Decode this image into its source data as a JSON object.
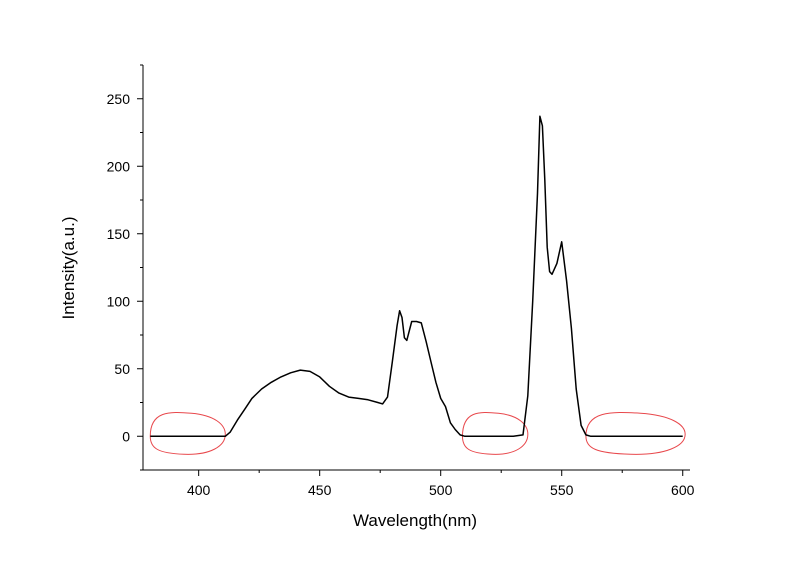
{
  "chart_data": {
    "type": "line",
    "title": "",
    "xlabel": "Wavelength(nm)",
    "ylabel": "Intensity(a.u.)",
    "xlim": [
      377,
      603
    ],
    "ylim": [
      -25,
      275
    ],
    "xticks": [
      400,
      450,
      500,
      550,
      600
    ],
    "yticks": [
      0,
      50,
      100,
      150,
      200,
      250
    ],
    "grid": false,
    "legend": "none",
    "series": [
      {
        "color": "#000000",
        "x": [
          380,
          390,
          400,
          408,
          411,
          413,
          416,
          419,
          422,
          426,
          430,
          434,
          438,
          442,
          446,
          450,
          454,
          458,
          462,
          466,
          470,
          474,
          476,
          478,
          480,
          482,
          483,
          484,
          485,
          486,
          488,
          490,
          492,
          494,
          496,
          498,
          500,
          502,
          504,
          506,
          508,
          510,
          520,
          530,
          534,
          536,
          538,
          540,
          541,
          542,
          543,
          544,
          545,
          546,
          548,
          550,
          552,
          554,
          556,
          558,
          560,
          562,
          570,
          580,
          590,
          600
        ],
        "y": [
          0,
          0,
          0,
          0,
          0,
          3,
          12,
          20,
          28,
          35,
          40,
          44,
          47,
          49,
          48,
          44,
          37,
          32,
          29,
          28,
          27,
          25,
          24,
          29,
          55,
          82,
          93,
          88,
          73,
          71,
          85,
          85,
          84,
          70,
          55,
          40,
          28,
          22,
          10,
          5,
          1,
          0,
          0,
          0,
          1,
          30,
          100,
          180,
          237,
          230,
          190,
          140,
          122,
          120,
          128,
          144,
          115,
          80,
          35,
          8,
          1,
          0,
          0,
          0,
          0,
          0
        ]
      }
    ],
    "annotations": [
      {
        "type": "hand-drawn-loop",
        "color": "#e8484c",
        "x": [
          380,
          411
        ]
      },
      {
        "type": "hand-drawn-loop",
        "color": "#e8484c",
        "x": [
          509,
          536
        ]
      },
      {
        "type": "hand-drawn-loop",
        "color": "#e8484c",
        "x": [
          560,
          601
        ]
      }
    ]
  }
}
